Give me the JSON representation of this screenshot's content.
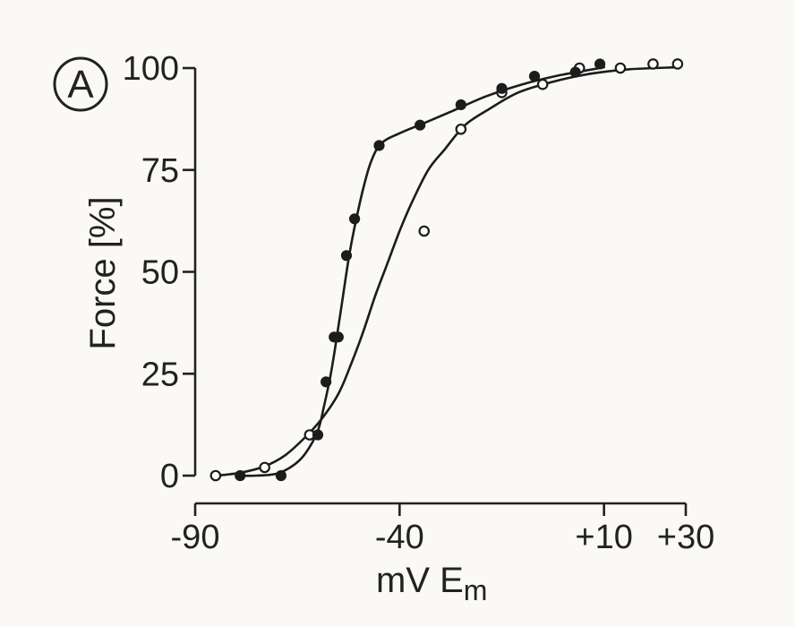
{
  "chart_data": {
    "type": "scatter",
    "panel_label": "A",
    "xlabel": "mV E",
    "xlabel_subscript": "m",
    "ylabel": "Force [%]",
    "xlim": [
      -90,
      30
    ],
    "ylim": [
      0,
      100
    ],
    "x_ticks": [
      {
        "value": -90,
        "label": "-90"
      },
      {
        "value": -40,
        "label": "-40"
      },
      {
        "value": 10,
        "label": "+10"
      },
      {
        "value": 30,
        "label": "+30"
      }
    ],
    "y_ticks": [
      {
        "value": 0,
        "label": "0"
      },
      {
        "value": 25,
        "label": "25"
      },
      {
        "value": 50,
        "label": "50"
      },
      {
        "value": 75,
        "label": "75"
      },
      {
        "value": 100,
        "label": "100"
      }
    ],
    "grid": false,
    "legend": "none",
    "series": [
      {
        "marker": "open-circle",
        "points": [
          [
            -85,
            0
          ],
          [
            -73,
            2
          ],
          [
            -62,
            10
          ],
          [
            -34,
            60
          ],
          [
            -25,
            85
          ],
          [
            -15,
            94
          ],
          [
            -5,
            96
          ],
          [
            4,
            100
          ],
          [
            14,
            100
          ],
          [
            22,
            101
          ],
          [
            28,
            101
          ]
        ],
        "curve": [
          [
            -85,
            0
          ],
          [
            -79,
            0.7
          ],
          [
            -73,
            2.3
          ],
          [
            -68,
            5
          ],
          [
            -63,
            9.5
          ],
          [
            -59,
            14
          ],
          [
            -55,
            20
          ],
          [
            -52,
            27
          ],
          [
            -49,
            35
          ],
          [
            -46,
            44
          ],
          [
            -43,
            52
          ],
          [
            -40,
            60
          ],
          [
            -37,
            67
          ],
          [
            -33,
            75
          ],
          [
            -29,
            80
          ],
          [
            -24,
            86
          ],
          [
            -18,
            90
          ],
          [
            -11,
            94
          ],
          [
            -3,
            96.5
          ],
          [
            6,
            98.5
          ],
          [
            16,
            99.7
          ],
          [
            28,
            100.2
          ]
        ]
      },
      {
        "marker": "filled-circle",
        "points": [
          [
            -79,
            0
          ],
          [
            -69,
            0
          ],
          [
            -60,
            10
          ],
          [
            -58,
            23
          ],
          [
            -56,
            34
          ],
          [
            -55,
            34
          ],
          [
            -53,
            54
          ],
          [
            -51,
            63
          ],
          [
            -45,
            81
          ],
          [
            -35,
            86
          ],
          [
            -25,
            91
          ],
          [
            -15,
            95
          ],
          [
            -7,
            98
          ],
          [
            3,
            99
          ],
          [
            9,
            101
          ]
        ],
        "curve": [
          [
            -79,
            0
          ],
          [
            -75,
            0
          ],
          [
            -70,
            0.5
          ],
          [
            -66,
            2.5
          ],
          [
            -63,
            5.5
          ],
          [
            -60,
            11
          ],
          [
            -58.5,
            17
          ],
          [
            -57,
            24
          ],
          [
            -55.5,
            33
          ],
          [
            -54,
            43
          ],
          [
            -52.5,
            53
          ],
          [
            -51,
            61
          ],
          [
            -49,
            70
          ],
          [
            -47,
            77
          ],
          [
            -44.5,
            81.5
          ],
          [
            -40,
            84
          ],
          [
            -34,
            86.5
          ],
          [
            -27,
            89.5
          ],
          [
            -19,
            93
          ],
          [
            -10,
            96
          ],
          [
            -2,
            98
          ],
          [
            5,
            99.3
          ],
          [
            10,
            100.2
          ]
        ]
      }
    ]
  }
}
